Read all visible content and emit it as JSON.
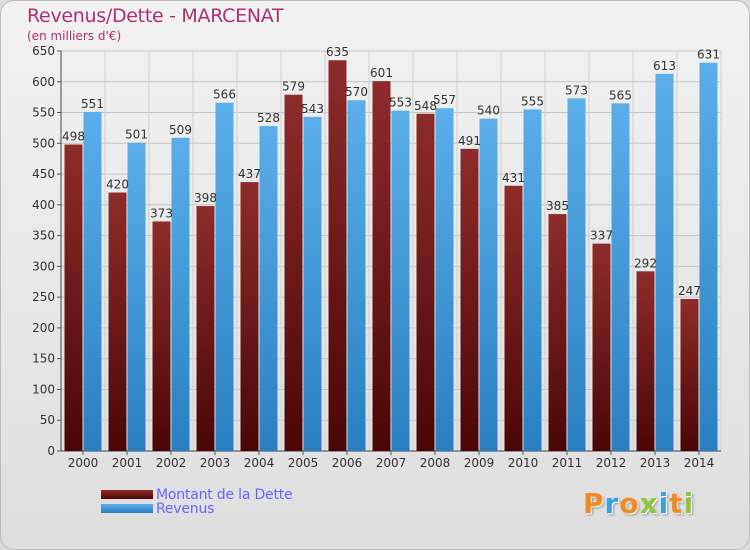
{
  "title": "Revenus/Dette - MARCENAT",
  "subtitle": "(en milliers d'€)",
  "chart_data": {
    "type": "bar",
    "title": "Revenus/Dette - MARCENAT",
    "subtitle": "(en milliers d'€)",
    "categories": [
      "2000",
      "2001",
      "2002",
      "2003",
      "2004",
      "2005",
      "2006",
      "2007",
      "2008",
      "2009",
      "2010",
      "2011",
      "2012",
      "2013",
      "2014"
    ],
    "series": [
      {
        "name": "Montant de la Dette",
        "color": "#7a1a1a",
        "values": [
          498,
          420,
          373,
          398,
          437,
          579,
          635,
          601,
          548,
          491,
          431,
          385,
          337,
          292,
          247
        ]
      },
      {
        "name": "Revenus",
        "color": "#3a96dd",
        "values": [
          551,
          501,
          509,
          566,
          528,
          543,
          570,
          553,
          557,
          540,
          555,
          573,
          565,
          613,
          631
        ]
      }
    ],
    "ylim": [
      0,
      650
    ],
    "yticks": [
      0,
      50,
      100,
      150,
      200,
      250,
      300,
      350,
      400,
      450,
      500,
      550,
      600,
      650
    ],
    "grid": true,
    "legend_position": "bottom-left"
  },
  "legend": {
    "items": [
      {
        "label": "Montant de la Dette",
        "color": "#7a1a1a"
      },
      {
        "label": "Revenus",
        "color": "#3a96dd"
      }
    ]
  },
  "logo": {
    "letters": [
      "P",
      "r",
      "o",
      "x",
      "i",
      "t",
      "i"
    ],
    "colors": [
      "#f08a24",
      "#3aa0de",
      "#f08a24",
      "#8dc63f",
      "#3aa0de",
      "#f08a24",
      "#8dc63f"
    ]
  }
}
